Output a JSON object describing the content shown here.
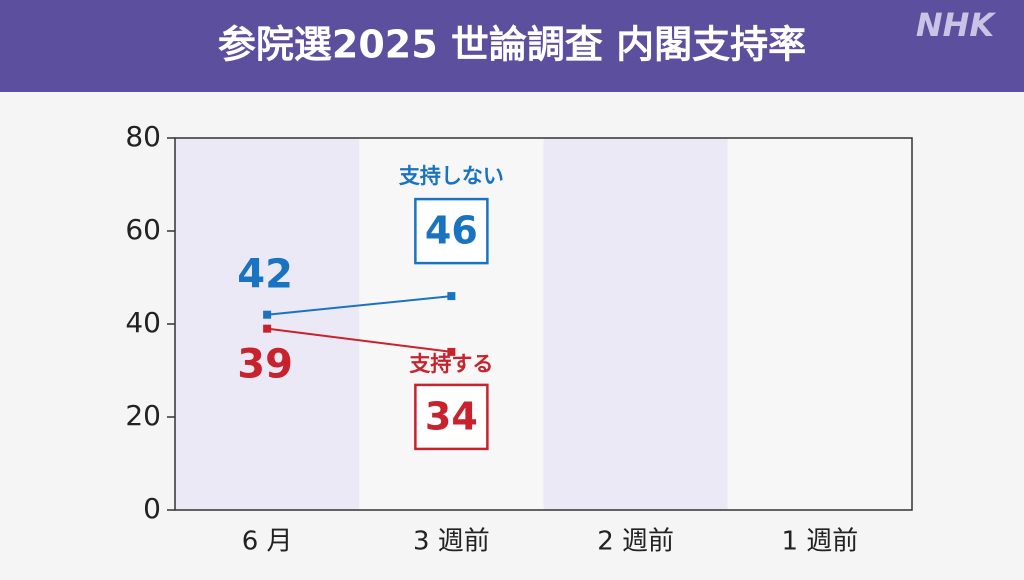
{
  "header": {
    "title": "参院選2025 世論調査 内閣支持率",
    "logo": "NHK"
  },
  "chart_data": {
    "type": "line",
    "categories": [
      "6 月",
      "3 週前",
      "2 週前",
      "1 週前"
    ],
    "series": [
      {
        "name": "支持しない",
        "color": "#1a73c0",
        "values": [
          42,
          46,
          null,
          null
        ]
      },
      {
        "name": "支持する",
        "color": "#c8232c",
        "values": [
          39,
          34,
          null,
          null
        ]
      }
    ],
    "ylim": [
      0,
      80
    ],
    "yticks": [
      0,
      20,
      40,
      60,
      80
    ],
    "shade_color": "#ebe9f5"
  }
}
